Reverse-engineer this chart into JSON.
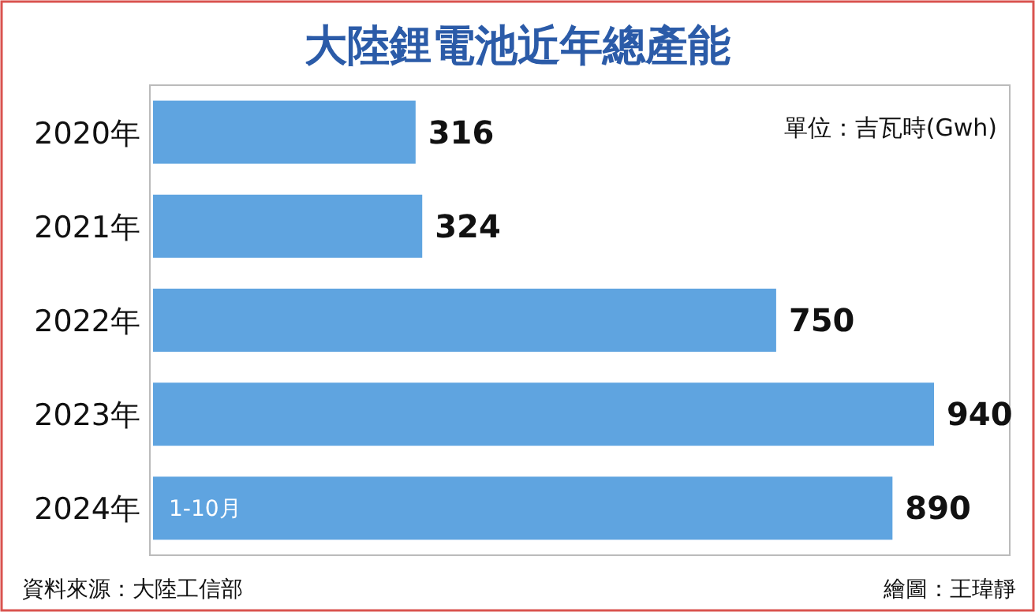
{
  "chart_data": {
    "type": "bar",
    "orientation": "horizontal",
    "title": "大陸鋰電池近年總產能",
    "categories": [
      "2020年",
      "2021年",
      "2022年",
      "2023年",
      "2024年"
    ],
    "values": [
      316,
      324,
      750,
      940,
      890
    ],
    "color": "#5fa4e0",
    "data_labels": true,
    "annotations": [
      "單位：吉瓦時(Gwh)",
      {
        "text": "1-10月",
        "x": 0,
        "y": "2024年"
      },
      "資料來源：大陸工信部",
      "繪圖：王瑋靜"
    ]
  }
}
